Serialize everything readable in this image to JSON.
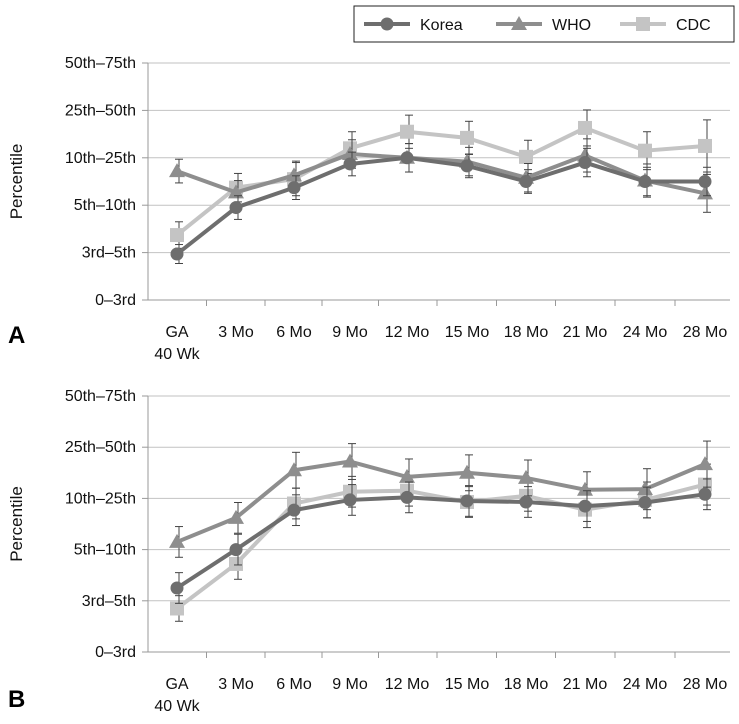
{
  "legend": [
    {
      "name": "Korea",
      "marker": "circle",
      "color": "#6e6e6e"
    },
    {
      "name": "WHO",
      "marker": "triangle",
      "color": "#8e8e8e"
    },
    {
      "name": "CDC",
      "marker": "square",
      "color": "#c4c4c4"
    }
  ],
  "chart_data": [
    {
      "type": "line",
      "panel_label": "A",
      "ylabel": "Percentile",
      "xlabel": "",
      "categories": [
        "GA 40 Wk",
        "3 Mo",
        "6 Mo",
        "9 Mo",
        "12 Mo",
        "15 Mo",
        "18 Mo",
        "21 Mo",
        "24 Mo",
        "28 Mo"
      ],
      "y_ticks": [
        "0–3rd",
        "3rd–5th",
        "5th–10th",
        "10th–25th",
        "25th–50th",
        "50th–75th"
      ],
      "ylim": [
        0,
        5
      ],
      "grid": true,
      "legend_position": "top-right",
      "series": [
        {
          "name": "Korea",
          "values": [
            0.97,
            1.95,
            2.37,
            2.87,
            3.0,
            2.83,
            2.5,
            2.9,
            2.5,
            2.5
          ],
          "errors": [
            0.2,
            0.25,
            0.25,
            0.25,
            0.3,
            0.25,
            0.25,
            0.3,
            0.3,
            0.3
          ]
        },
        {
          "name": "WHO",
          "values": [
            2.72,
            2.27,
            2.63,
            3.08,
            3.0,
            2.92,
            2.58,
            3.05,
            2.52,
            2.25
          ],
          "errors": [
            0.25,
            0.25,
            0.3,
            0.3,
            0.3,
            0.3,
            0.3,
            0.35,
            0.35,
            0.4
          ]
        },
        {
          "name": "CDC",
          "values": [
            1.37,
            2.37,
            2.55,
            3.2,
            3.55,
            3.42,
            3.02,
            3.63,
            3.15,
            3.25
          ],
          "errors": [
            0.28,
            0.3,
            0.35,
            0.35,
            0.35,
            0.35,
            0.35,
            0.38,
            0.4,
            0.55
          ]
        }
      ]
    },
    {
      "type": "line",
      "panel_label": "B",
      "ylabel": "Percentile",
      "xlabel": "",
      "categories": [
        "GA 40 Wk",
        "3 Mo",
        "6 Mo",
        "9 Mo",
        "12 Mo",
        "15 Mo",
        "18 Mo",
        "21 Mo",
        "24 Mo",
        "28 Mo"
      ],
      "y_ticks": [
        "0–3rd",
        "3rd–5th",
        "5th–10th",
        "10th–25th",
        "25th–50th",
        "50th–75th"
      ],
      "ylim": [
        0,
        5
      ],
      "grid": true,
      "legend_position": "none",
      "series": [
        {
          "name": "Korea",
          "values": [
            1.25,
            2.0,
            2.77,
            2.97,
            3.02,
            2.95,
            2.93,
            2.85,
            2.92,
            3.08
          ],
          "errors": [
            0.3,
            0.3,
            0.3,
            0.3,
            0.3,
            0.3,
            0.3,
            0.3,
            0.3,
            0.3
          ]
        },
        {
          "name": "WHO",
          "values": [
            2.15,
            2.62,
            3.55,
            3.72,
            3.42,
            3.5,
            3.4,
            3.17,
            3.18,
            3.67
          ],
          "errors": [
            0.3,
            0.3,
            0.35,
            0.35,
            0.35,
            0.35,
            0.35,
            0.35,
            0.4,
            0.45
          ]
        },
        {
          "name": "CDC",
          "values": [
            0.85,
            1.72,
            2.9,
            3.13,
            3.15,
            2.93,
            3.05,
            2.78,
            2.97,
            3.27
          ],
          "errors": [
            0.25,
            0.3,
            0.3,
            0.3,
            0.3,
            0.3,
            0.3,
            0.35,
            0.35,
            0.4
          ]
        }
      ]
    }
  ]
}
